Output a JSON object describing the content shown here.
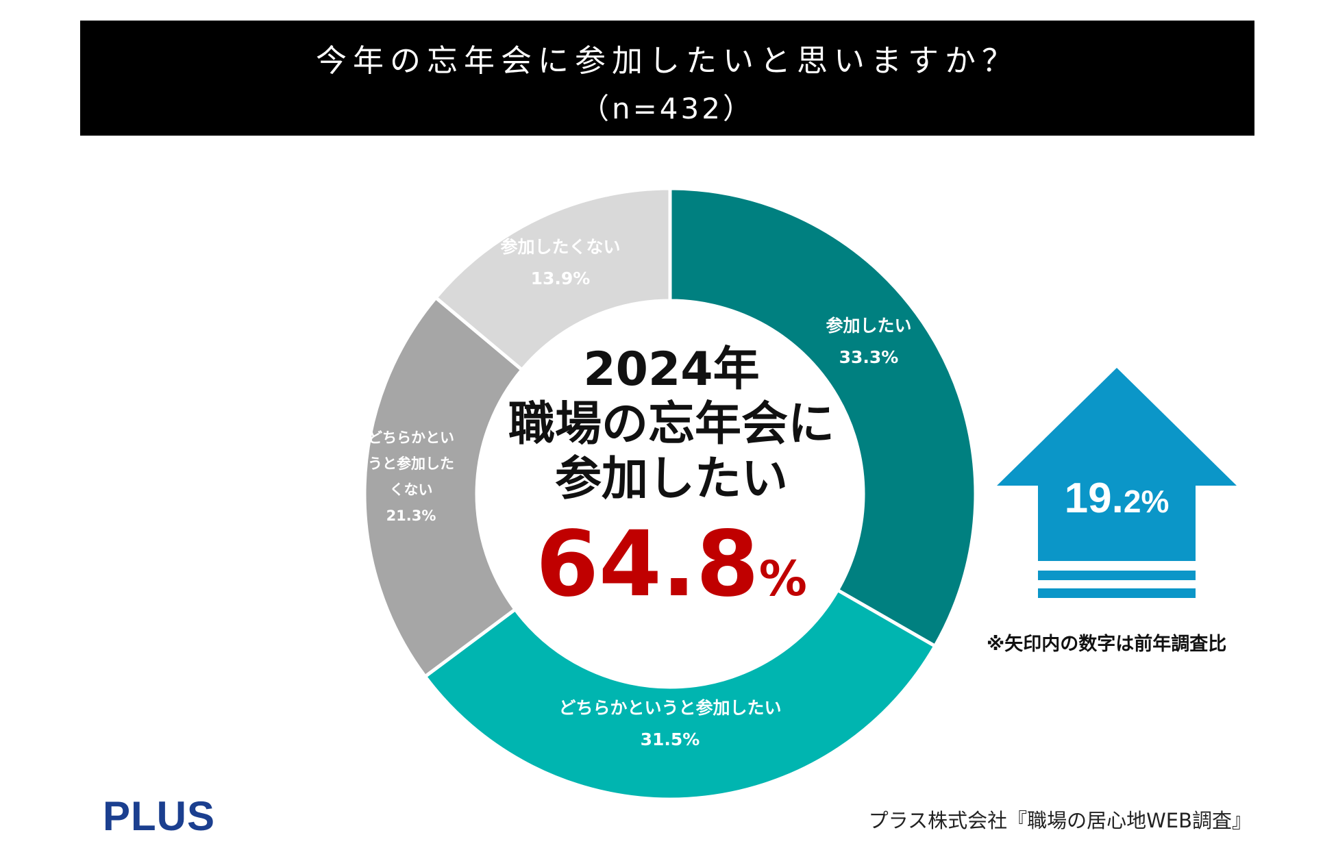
{
  "header": {
    "title": "今年の忘年会に参加したいと思いますか？",
    "sample": "（n=432）"
  },
  "chart_data": {
    "type": "pie",
    "categories": [
      "参加したい",
      "どちらかというと参加したい",
      "どちらかというと参加したくない",
      "参加したくない"
    ],
    "values": [
      33.3,
      31.5,
      21.3,
      13.9
    ],
    "value_labels": [
      "33.3%",
      "31.5%",
      "21.3%",
      "13.9%"
    ],
    "slice_labels": [
      [
        "参加したい"
      ],
      [
        "どちらかというと参加したい"
      ],
      [
        "どちらかとい",
        "うと参加した",
        "くない"
      ],
      [
        "参加したくない"
      ]
    ],
    "colors": [
      "#008080",
      "#00b5b0",
      "#a6a6a6",
      "#d9d9d9"
    ],
    "style": "donut"
  },
  "center": {
    "year": "2024年",
    "line1": "職場の忘年会に",
    "line2": "参加したい",
    "value": "64.8",
    "unit": "%"
  },
  "arrow": {
    "value_main": "19.",
    "value_small": "2%",
    "color": "#0b96c8",
    "note": "※矢印内の数字は前年調査比"
  },
  "footer": {
    "logo": "PLUS",
    "source": "プラス株式会社『職場の居心地WEB調査』"
  }
}
